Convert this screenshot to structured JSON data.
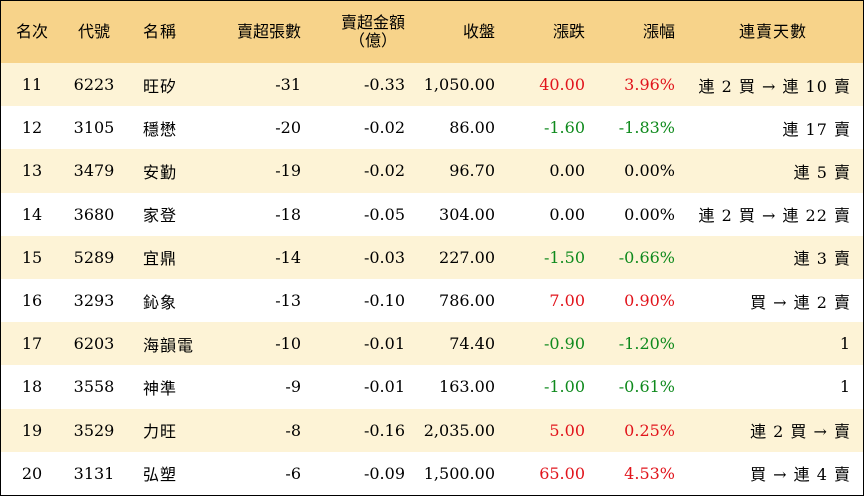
{
  "headers": {
    "rank": "名次",
    "code": "代號",
    "name": "名稱",
    "sell_lots": "賣超張數",
    "sell_amount_line1": "賣超金額",
    "sell_amount_line2": "（億）",
    "close": "收盤",
    "change": "漲跌",
    "pct": "漲幅",
    "streak": "連賣天數"
  },
  "colors": {
    "header_bg": "#f7d38a",
    "stripe_bg": "#fdf3d6",
    "up": "#e1141c",
    "down": "#0f8a1d"
  },
  "rows": [
    {
      "rank": "11",
      "code": "6223",
      "name": "旺矽",
      "lots": "-31",
      "amount": "-0.33",
      "close": "1,050.00",
      "change": "40.00",
      "pct": "3.96%",
      "dir": "up",
      "streak": "連 2 買 → 連 10 賣"
    },
    {
      "rank": "12",
      "code": "3105",
      "name": "穩懋",
      "lots": "-20",
      "amount": "-0.02",
      "close": "86.00",
      "change": "-1.60",
      "pct": "-1.83%",
      "dir": "down",
      "streak": "連 17 賣"
    },
    {
      "rank": "13",
      "code": "3479",
      "name": "安勤",
      "lots": "-19",
      "amount": "-0.02",
      "close": "96.70",
      "change": "0.00",
      "pct": "0.00%",
      "dir": "flat",
      "streak": "連 5 賣"
    },
    {
      "rank": "14",
      "code": "3680",
      "name": "家登",
      "lots": "-18",
      "amount": "-0.05",
      "close": "304.00",
      "change": "0.00",
      "pct": "0.00%",
      "dir": "flat",
      "streak": "連 2 買 → 連 22 賣"
    },
    {
      "rank": "15",
      "code": "5289",
      "name": "宜鼎",
      "lots": "-14",
      "amount": "-0.03",
      "close": "227.00",
      "change": "-1.50",
      "pct": "-0.66%",
      "dir": "down",
      "streak": "連 3 賣"
    },
    {
      "rank": "16",
      "code": "3293",
      "name": "鈊象",
      "lots": "-13",
      "amount": "-0.10",
      "close": "786.00",
      "change": "7.00",
      "pct": "0.90%",
      "dir": "up",
      "streak": "買 → 連 2 賣"
    },
    {
      "rank": "17",
      "code": "6203",
      "name": "海韻電",
      "lots": "-10",
      "amount": "-0.01",
      "close": "74.40",
      "change": "-0.90",
      "pct": "-1.20%",
      "dir": "down",
      "streak": "1"
    },
    {
      "rank": "18",
      "code": "3558",
      "name": "神準",
      "lots": "-9",
      "amount": "-0.01",
      "close": "163.00",
      "change": "-1.00",
      "pct": "-0.61%",
      "dir": "down",
      "streak": "1"
    },
    {
      "rank": "19",
      "code": "3529",
      "name": "力旺",
      "lots": "-8",
      "amount": "-0.16",
      "close": "2,035.00",
      "change": "5.00",
      "pct": "0.25%",
      "dir": "up",
      "streak": "連 2 買 → 賣"
    },
    {
      "rank": "20",
      "code": "3131",
      "name": "弘塑",
      "lots": "-6",
      "amount": "-0.09",
      "close": "1,500.00",
      "change": "65.00",
      "pct": "4.53%",
      "dir": "up",
      "streak": "買 → 連 4 賣"
    }
  ]
}
